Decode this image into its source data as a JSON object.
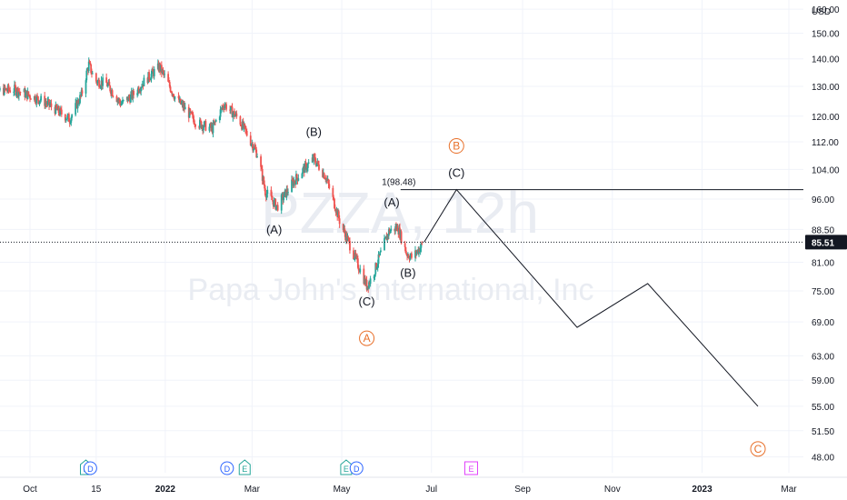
{
  "watermark": {
    "symbol": "PZZA, 12h",
    "name": "Papa John's International, Inc"
  },
  "currency": "USD",
  "last_price": "85.51",
  "colors": {
    "up": "#26a69a",
    "down": "#ef5350",
    "orange": "#e8702a",
    "grid": "#f0f3fa",
    "axis_text": "#131722",
    "earnings": "#26a69a",
    "dividend": "#2962ff",
    "event_e": "#e040fb"
  },
  "chart_data": {
    "type": "candlestick",
    "y_scale": "log",
    "ylim": [
      46,
      164
    ],
    "y_ticks": [
      "48.00",
      "51.50",
      "55.00",
      "59.00",
      "63.00",
      "69.00",
      "75.00",
      "81.00",
      "88.50",
      "96.00",
      "104.00",
      "112.00",
      "120.00",
      "130.00",
      "140.00",
      "150.00",
      "160.00"
    ],
    "x_ticks": [
      {
        "label": "Oct",
        "date": "2021-10-01"
      },
      {
        "label": "15",
        "date": "2021-11-15"
      },
      {
        "label": "2022",
        "date": "2022-01-01"
      },
      {
        "label": "Mar",
        "date": "2022-03-01"
      },
      {
        "label": "May",
        "date": "2022-05-01"
      },
      {
        "label": "Jul",
        "date": "2022-07-01"
      },
      {
        "label": "Sep",
        "date": "2022-09-01"
      },
      {
        "label": "Nov",
        "date": "2022-11-01"
      },
      {
        "label": "2023",
        "date": "2023-01-01"
      },
      {
        "label": "Mar",
        "date": "2023-03-01"
      }
    ],
    "candles_start": "2021-09-02",
    "candles_end": "2022-06-26",
    "price_path": [
      [
        "2021-09-02",
        128
      ],
      [
        "2021-09-20",
        129
      ],
      [
        "2021-10-10",
        125
      ],
      [
        "2021-10-28",
        119
      ],
      [
        "2021-11-05",
        127
      ],
      [
        "2021-11-10",
        138
      ],
      [
        "2021-11-14",
        132
      ],
      [
        "2021-11-22",
        131
      ],
      [
        "2021-12-02",
        124
      ],
      [
        "2021-12-10",
        127
      ],
      [
        "2021-12-18",
        132
      ],
      [
        "2021-12-28",
        137
      ],
      [
        "2022-01-08",
        126
      ],
      [
        "2022-01-22",
        118
      ],
      [
        "2022-02-02",
        116
      ],
      [
        "2022-02-10",
        124
      ],
      [
        "2022-02-20",
        119
      ],
      [
        "2022-03-05",
        108
      ],
      [
        "2022-03-10",
        98
      ],
      [
        "2022-03-18",
        94
      ],
      [
        "2022-03-28",
        100
      ],
      [
        "2022-04-05",
        104
      ],
      [
        "2022-04-12",
        107
      ],
      [
        "2022-04-20",
        102
      ],
      [
        "2022-04-30",
        90
      ],
      [
        "2022-05-10",
        82
      ],
      [
        "2022-05-18",
        76
      ],
      [
        "2022-05-22",
        78
      ],
      [
        "2022-06-02",
        88
      ],
      [
        "2022-06-08",
        89
      ],
      [
        "2022-06-14",
        83
      ],
      [
        "2022-06-18",
        82
      ],
      [
        "2022-06-26",
        85.5
      ]
    ],
    "projection": [
      {
        "date": "2022-06-26",
        "value": 85.5
      },
      {
        "date": "2022-07-18",
        "value": 98.48
      },
      {
        "date": "2022-10-08",
        "value": 68
      },
      {
        "date": "2022-11-25",
        "value": 76.5
      },
      {
        "date": "2023-02-08",
        "value": 55
      }
    ],
    "level_line": {
      "label": "1(98.48)",
      "value": 98.48,
      "from": "2022-06-10",
      "to": "2023-04-30"
    },
    "wave_labels": [
      {
        "text": "(A)",
        "date": "2022-03-16",
        "value": 91,
        "pos": "below",
        "style": "black"
      },
      {
        "text": "(B)",
        "date": "2022-04-12",
        "value": 110,
        "pos": "above",
        "style": "black"
      },
      {
        "text": "(C)",
        "date": "2022-05-18",
        "value": 75,
        "pos": "below",
        "style": "black"
      },
      {
        "text": "A",
        "date": "2022-05-18",
        "value": 68,
        "pos": "below",
        "style": "orange-circle"
      },
      {
        "text": "(A)",
        "date": "2022-06-04",
        "value": 91,
        "pos": "above",
        "style": "black"
      },
      {
        "text": "(B)",
        "date": "2022-06-15",
        "value": 81,
        "pos": "below",
        "style": "black"
      },
      {
        "text": "(C)",
        "date": "2022-07-18",
        "value": 98.48,
        "pos": "above",
        "style": "black"
      },
      {
        "text": "B",
        "date": "2022-07-18",
        "value": 106,
        "pos": "above",
        "style": "orange-circle"
      },
      {
        "text": "C",
        "date": "2023-02-08",
        "value": 50.5,
        "pos": "below",
        "style": "orange-circle"
      }
    ],
    "events": [
      {
        "type": "E",
        "date": "2021-11-08"
      },
      {
        "type": "D",
        "date": "2021-11-11"
      },
      {
        "type": "D",
        "date": "2022-02-12"
      },
      {
        "type": "E",
        "date": "2022-02-24"
      },
      {
        "type": "E",
        "date": "2022-05-04"
      },
      {
        "type": "D",
        "date": "2022-05-11"
      },
      {
        "type": "E",
        "date": "2022-07-28"
      }
    ]
  }
}
